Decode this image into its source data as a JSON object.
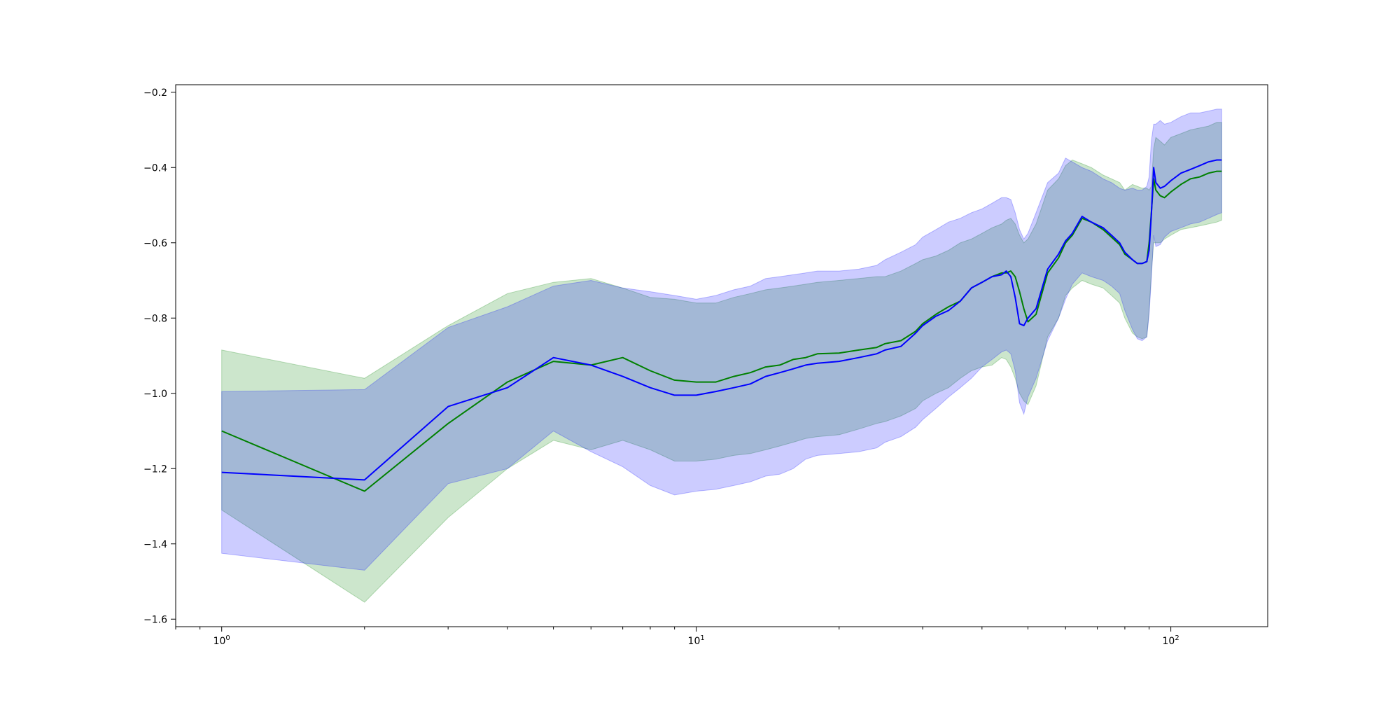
{
  "chart_data": {
    "type": "line",
    "title": "",
    "xlabel": "",
    "ylabel": "",
    "xscale": "log",
    "xlim": [
      0.8,
      160
    ],
    "ylim": [
      -1.62,
      -0.18
    ],
    "grid": false,
    "legend": "none",
    "x_ticks": [
      {
        "value": 1,
        "label_base": "10",
        "label_exp": "0"
      },
      {
        "value": 10,
        "label_base": "10",
        "label_exp": "1"
      },
      {
        "value": 100,
        "label_base": "10",
        "label_exp": "2"
      }
    ],
    "y_ticks": [
      {
        "value": -1.6,
        "label": "−1.6"
      },
      {
        "value": -1.4,
        "label": "−1.4"
      },
      {
        "value": -1.2,
        "label": "−1.2"
      },
      {
        "value": -1.0,
        "label": "−1.0"
      },
      {
        "value": -0.8,
        "label": "−0.8"
      },
      {
        "value": -0.6,
        "label": "−0.6"
      },
      {
        "value": -0.4,
        "label": "−0.4"
      },
      {
        "value": -0.2,
        "label": "−0.2"
      }
    ],
    "series": [
      {
        "color": "#008000",
        "band_color": "#008000",
        "band_opacity": 0.2,
        "x": [
          1,
          2,
          3,
          4,
          5,
          6,
          7,
          8,
          9,
          10,
          11,
          12,
          13,
          14,
          15,
          16,
          17,
          18,
          20,
          22,
          24,
          25,
          27,
          29,
          30,
          32,
          34,
          36,
          38,
          40,
          42,
          44,
          45,
          46,
          47,
          48,
          49,
          50,
          52,
          55,
          58,
          60,
          62,
          65,
          68,
          72,
          75,
          78,
          80,
          83,
          85,
          87,
          89,
          90,
          91,
          92,
          93,
          95,
          97,
          100,
          105,
          110,
          115,
          120,
          125,
          128
        ],
        "mean": [
          -1.1,
          -1.26,
          -1.08,
          -0.97,
          -0.915,
          -0.925,
          -0.905,
          -0.94,
          -0.965,
          -0.97,
          -0.97,
          -0.955,
          -0.945,
          -0.93,
          -0.925,
          -0.91,
          -0.905,
          -0.895,
          -0.893,
          -0.885,
          -0.878,
          -0.868,
          -0.86,
          -0.835,
          -0.815,
          -0.79,
          -0.77,
          -0.755,
          -0.72,
          -0.705,
          -0.69,
          -0.68,
          -0.68,
          -0.675,
          -0.69,
          -0.73,
          -0.775,
          -0.81,
          -0.79,
          -0.68,
          -0.64,
          -0.6,
          -0.58,
          -0.535,
          -0.545,
          -0.565,
          -0.585,
          -0.605,
          -0.63,
          -0.645,
          -0.655,
          -0.655,
          -0.65,
          -0.6,
          -0.52,
          -0.43,
          -0.46,
          -0.475,
          -0.48,
          -0.465,
          -0.445,
          -0.43,
          -0.425,
          -0.415,
          -0.41,
          -0.41
        ],
        "upper": [
          -0.885,
          -0.96,
          -0.82,
          -0.735,
          -0.705,
          -0.695,
          -0.72,
          -0.745,
          -0.75,
          -0.76,
          -0.76,
          -0.745,
          -0.735,
          -0.725,
          -0.72,
          -0.715,
          -0.71,
          -0.705,
          -0.7,
          -0.695,
          -0.69,
          -0.69,
          -0.675,
          -0.655,
          -0.645,
          -0.635,
          -0.62,
          -0.6,
          -0.59,
          -0.575,
          -0.56,
          -0.55,
          -0.54,
          -0.535,
          -0.55,
          -0.58,
          -0.6,
          -0.59,
          -0.55,
          -0.46,
          -0.43,
          -0.395,
          -0.38,
          -0.39,
          -0.4,
          -0.42,
          -0.43,
          -0.44,
          -0.46,
          -0.445,
          -0.45,
          -0.455,
          -0.455,
          -0.46,
          -0.45,
          -0.35,
          -0.32,
          -0.33,
          -0.34,
          -0.32,
          -0.31,
          -0.3,
          -0.295,
          -0.29,
          -0.28,
          -0.28
        ],
        "lower": [
          -1.31,
          -1.555,
          -1.33,
          -1.2,
          -1.125,
          -1.15,
          -1.125,
          -1.15,
          -1.18,
          -1.18,
          -1.175,
          -1.165,
          -1.16,
          -1.15,
          -1.14,
          -1.13,
          -1.12,
          -1.115,
          -1.11,
          -1.095,
          -1.08,
          -1.075,
          -1.06,
          -1.04,
          -1.02,
          -1.0,
          -0.985,
          -0.96,
          -0.94,
          -0.93,
          -0.925,
          -0.905,
          -0.91,
          -0.93,
          -0.96,
          -1.0,
          -1.02,
          -1.03,
          -0.98,
          -0.85,
          -0.8,
          -0.74,
          -0.72,
          -0.7,
          -0.71,
          -0.72,
          -0.74,
          -0.76,
          -0.8,
          -0.84,
          -0.85,
          -0.855,
          -0.85,
          -0.78,
          -0.68,
          -0.6,
          -0.6,
          -0.6,
          -0.59,
          -0.58,
          -0.565,
          -0.56,
          -0.555,
          -0.55,
          -0.545,
          -0.54
        ]
      },
      {
        "color": "#0000ff",
        "band_color": "#0000ff",
        "band_opacity": 0.2,
        "x": [
          1,
          2,
          3,
          4,
          5,
          6,
          7,
          8,
          9,
          10,
          11,
          12,
          13,
          14,
          15,
          16,
          17,
          18,
          20,
          22,
          24,
          25,
          27,
          29,
          30,
          32,
          34,
          36,
          38,
          40,
          42,
          44,
          45,
          46,
          47,
          48,
          49,
          50,
          52,
          55,
          58,
          60,
          62,
          65,
          68,
          72,
          75,
          78,
          80,
          83,
          85,
          87,
          89,
          90,
          91,
          92,
          93,
          95,
          97,
          100,
          105,
          110,
          115,
          120,
          125,
          128
        ],
        "mean": [
          -1.21,
          -1.23,
          -1.035,
          -0.985,
          -0.905,
          -0.925,
          -0.955,
          -0.985,
          -1.005,
          -1.005,
          -0.995,
          -0.985,
          -0.975,
          -0.955,
          -0.945,
          -0.935,
          -0.925,
          -0.92,
          -0.915,
          -0.905,
          -0.895,
          -0.885,
          -0.875,
          -0.84,
          -0.82,
          -0.795,
          -0.78,
          -0.755,
          -0.72,
          -0.705,
          -0.69,
          -0.685,
          -0.675,
          -0.69,
          -0.745,
          -0.815,
          -0.82,
          -0.8,
          -0.775,
          -0.67,
          -0.63,
          -0.595,
          -0.575,
          -0.53,
          -0.545,
          -0.56,
          -0.58,
          -0.6,
          -0.625,
          -0.645,
          -0.655,
          -0.655,
          -0.65,
          -0.62,
          -0.525,
          -0.4,
          -0.44,
          -0.455,
          -0.45,
          -0.435,
          -0.415,
          -0.405,
          -0.395,
          -0.385,
          -0.38,
          -0.38
        ],
        "upper": [
          -0.995,
          -0.99,
          -0.825,
          -0.77,
          -0.715,
          -0.7,
          -0.72,
          -0.73,
          -0.74,
          -0.75,
          -0.74,
          -0.725,
          -0.715,
          -0.695,
          -0.69,
          -0.685,
          -0.68,
          -0.675,
          -0.675,
          -0.67,
          -0.66,
          -0.645,
          -0.625,
          -0.605,
          -0.585,
          -0.565,
          -0.545,
          -0.535,
          -0.52,
          -0.51,
          -0.495,
          -0.48,
          -0.48,
          -0.485,
          -0.52,
          -0.565,
          -0.59,
          -0.575,
          -0.52,
          -0.44,
          -0.415,
          -0.375,
          -0.385,
          -0.4,
          -0.41,
          -0.43,
          -0.44,
          -0.455,
          -0.46,
          -0.455,
          -0.46,
          -0.46,
          -0.45,
          -0.425,
          -0.33,
          -0.285,
          -0.285,
          -0.275,
          -0.285,
          -0.28,
          -0.265,
          -0.255,
          -0.255,
          -0.25,
          -0.245,
          -0.245
        ],
        "lower": [
          -1.425,
          -1.47,
          -1.24,
          -1.2,
          -1.1,
          -1.155,
          -1.195,
          -1.245,
          -1.27,
          -1.26,
          -1.255,
          -1.245,
          -1.235,
          -1.22,
          -1.215,
          -1.2,
          -1.175,
          -1.165,
          -1.16,
          -1.155,
          -1.145,
          -1.13,
          -1.115,
          -1.09,
          -1.07,
          -1.04,
          -1.01,
          -0.985,
          -0.96,
          -0.93,
          -0.91,
          -0.89,
          -0.885,
          -0.895,
          -0.94,
          -1.025,
          -1.055,
          -1.01,
          -0.96,
          -0.86,
          -0.8,
          -0.75,
          -0.71,
          -0.68,
          -0.69,
          -0.7,
          -0.715,
          -0.735,
          -0.78,
          -0.83,
          -0.855,
          -0.86,
          -0.85,
          -0.79,
          -0.695,
          -0.58,
          -0.61,
          -0.605,
          -0.585,
          -0.57,
          -0.56,
          -0.55,
          -0.545,
          -0.535,
          -0.525,
          -0.52
        ]
      }
    ]
  }
}
